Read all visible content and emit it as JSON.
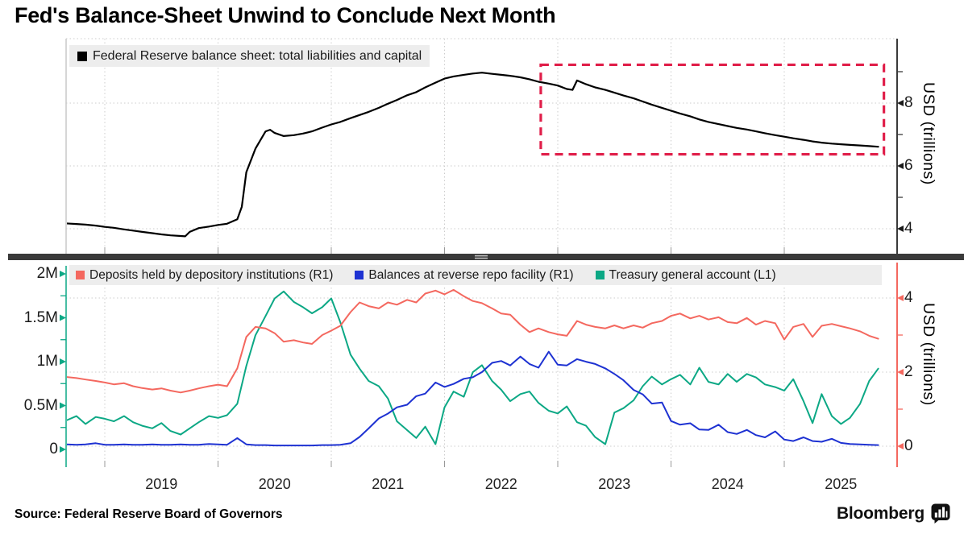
{
  "title": "Fed's Balance-Sheet Unwind to Conclude Next Month",
  "source": "Source: Federal Reserve Board of Governors",
  "brand": {
    "wordmark": "Bloomberg",
    "icon": "bloomberg-terminal-icon"
  },
  "colors": {
    "black_series": "#000000",
    "deposits_red": "#f4685f",
    "repo_blue": "#1e32d2",
    "tga_green": "#0ca885",
    "annotation_red": "#e01e49",
    "divider": "#3a3a3a",
    "gridline": "#cccccc",
    "legend_bg": "#ededed"
  },
  "top_panel": {
    "legend": {
      "marker_color": "#000000",
      "label": "Federal Reserve balance sheet: total liabilities and capital"
    },
    "right_axis": {
      "label": "USD (trillions)",
      "ticks": [
        "4",
        "6",
        "8"
      ],
      "tick_values": [
        4,
        6,
        8
      ],
      "minor_tick_values": [
        5,
        7,
        9
      ],
      "color": "#3a3a3a"
    }
  },
  "bottom_panel": {
    "legend_items": [
      {
        "label": "Deposits held by depository institutions (R1)",
        "color": "#f4685f"
      },
      {
        "label": "Balances at reverse repo facility (R1)",
        "color": "#1e32d2"
      },
      {
        "label": "Treasury general account (L1)",
        "color": "#0ca885"
      }
    ],
    "left_axis": {
      "ticks": [
        "0",
        "0.5M",
        "1M",
        "1.5M",
        "2M"
      ],
      "tick_values": [
        0,
        0.5,
        1,
        1.5,
        2
      ],
      "minor_tick_values": [
        0.25,
        0.75,
        1.25,
        1.75
      ],
      "color": "#0ca885"
    },
    "right_axis": {
      "label": "USD (trillions)",
      "ticks": [
        "0",
        "2",
        "4"
      ],
      "tick_values": [
        0,
        2,
        4
      ],
      "minor_tick_values": [
        1,
        3
      ],
      "color": "#f4685f"
    }
  },
  "x_axis": {
    "year_labels": [
      "2019",
      "2020",
      "2021",
      "2022",
      "2023",
      "2024",
      "2025"
    ],
    "year_values": [
      2019,
      2020,
      2021,
      2022,
      2023,
      2024,
      2025
    ]
  },
  "annotation": {
    "shape": "dashed-rectangle",
    "color": "#e01e49",
    "x_years": [
      2022.85,
      2025.88
    ],
    "y_trillions": [
      6.37,
      9.22
    ]
  },
  "chart_data": [
    {
      "type": "line",
      "panel": "top",
      "title": "Federal Reserve balance sheet: total liabilities and capital",
      "ylabel": "USD (trillions)",
      "y_axis_side": "right",
      "ylim": [
        3.15,
        10.05
      ],
      "x_domain_years": [
        2018.66,
        2026.0
      ],
      "grid": true,
      "series": [
        {
          "name": "Federal Reserve balance sheet: total liabilities and capital",
          "color": "#000000",
          "units": "USD trillions",
          "x": [
            2018.66,
            2018.75,
            2018.83,
            2018.92,
            2019,
            2019.08,
            2019.17,
            2019.25,
            2019.33,
            2019.42,
            2019.5,
            2019.58,
            2019.67,
            2019.71,
            2019.75,
            2019.83,
            2019.92,
            2020,
            2020.08,
            2020.17,
            2020.21,
            2020.25,
            2020.33,
            2020.42,
            2020.46,
            2020.5,
            2020.58,
            2020.67,
            2020.75,
            2020.83,
            2020.92,
            2021,
            2021.08,
            2021.17,
            2021.25,
            2021.33,
            2021.42,
            2021.5,
            2021.58,
            2021.67,
            2021.75,
            2021.83,
            2021.92,
            2022,
            2022.08,
            2022.17,
            2022.25,
            2022.33,
            2022.42,
            2022.5,
            2022.58,
            2022.67,
            2022.75,
            2022.83,
            2022.92,
            2023,
            2023.08,
            2023.13,
            2023.17,
            2023.25,
            2023.33,
            2023.42,
            2023.5,
            2023.58,
            2023.67,
            2023.75,
            2023.83,
            2023.92,
            2024,
            2024.08,
            2024.17,
            2024.25,
            2024.33,
            2024.42,
            2024.5,
            2024.58,
            2024.67,
            2024.75,
            2024.83,
            2024.92,
            2025,
            2025.08,
            2025.17,
            2025.25,
            2025.33,
            2025.42,
            2025.5,
            2025.58,
            2025.67,
            2025.75,
            2025.83
          ],
          "y": [
            4.17,
            4.15,
            4.13,
            4.1,
            4.06,
            4.03,
            3.98,
            3.94,
            3.9,
            3.86,
            3.82,
            3.79,
            3.77,
            3.76,
            3.9,
            4.02,
            4.07,
            4.12,
            4.16,
            4.3,
            4.7,
            5.8,
            6.55,
            7.1,
            7.15,
            7.05,
            6.95,
            6.98,
            7.03,
            7.1,
            7.22,
            7.32,
            7.4,
            7.52,
            7.62,
            7.72,
            7.85,
            7.98,
            8.1,
            8.25,
            8.35,
            8.5,
            8.65,
            8.78,
            8.85,
            8.9,
            8.94,
            8.97,
            8.93,
            8.9,
            8.87,
            8.82,
            8.76,
            8.68,
            8.62,
            8.56,
            8.45,
            8.42,
            8.72,
            8.6,
            8.5,
            8.42,
            8.33,
            8.24,
            8.15,
            8.05,
            7.95,
            7.85,
            7.76,
            7.67,
            7.58,
            7.48,
            7.4,
            7.33,
            7.27,
            7.21,
            7.16,
            7.1,
            7.04,
            6.98,
            6.93,
            6.88,
            6.83,
            6.78,
            6.74,
            6.71,
            6.69,
            6.67,
            6.65,
            6.63,
            6.61
          ]
        }
      ]
    },
    {
      "type": "line",
      "panel": "bottom",
      "left_ylabel_units": "millions (M)",
      "right_ylabel": "USD (trillions)",
      "left_ylim_millions": [
        -0.2,
        2.09
      ],
      "right_ylim_trillions": [
        -0.57,
        4.87
      ],
      "x_domain_years": [
        2018.66,
        2026.0
      ],
      "grid": true,
      "x_values_years": [
        2018.66,
        2018.75,
        2018.83,
        2018.92,
        2019,
        2019.08,
        2019.17,
        2019.25,
        2019.33,
        2019.42,
        2019.5,
        2019.58,
        2019.67,
        2019.75,
        2019.83,
        2019.92,
        2020,
        2020.08,
        2020.17,
        2020.25,
        2020.33,
        2020.42,
        2020.5,
        2020.58,
        2020.67,
        2020.75,
        2020.83,
        2020.92,
        2021,
        2021.08,
        2021.17,
        2021.25,
        2021.33,
        2021.42,
        2021.5,
        2021.58,
        2021.67,
        2021.75,
        2021.83,
        2021.92,
        2022,
        2022.08,
        2022.17,
        2022.25,
        2022.33,
        2022.42,
        2022.5,
        2022.58,
        2022.67,
        2022.75,
        2022.83,
        2022.92,
        2023,
        2023.08,
        2023.17,
        2023.25,
        2023.33,
        2023.42,
        2023.5,
        2023.58,
        2023.67,
        2023.75,
        2023.83,
        2023.92,
        2024,
        2024.08,
        2024.17,
        2024.25,
        2024.33,
        2024.42,
        2024.5,
        2024.58,
        2024.67,
        2024.75,
        2024.83,
        2024.92,
        2025,
        2025.08,
        2025.17,
        2025.25,
        2025.33,
        2025.42,
        2025.5,
        2025.58,
        2025.67,
        2025.75,
        2025.83
      ],
      "series": [
        {
          "name": "Deposits held by depository institutions",
          "axis": "R1",
          "color": "#f4685f",
          "units": "USD trillions",
          "y": [
            1.87,
            1.84,
            1.8,
            1.76,
            1.72,
            1.67,
            1.7,
            1.62,
            1.57,
            1.53,
            1.56,
            1.5,
            1.45,
            1.5,
            1.56,
            1.62,
            1.66,
            1.62,
            2.1,
            2.95,
            3.22,
            3.18,
            3.05,
            2.82,
            2.86,
            2.8,
            2.76,
            3.0,
            3.12,
            3.25,
            3.62,
            3.88,
            3.78,
            3.72,
            3.88,
            3.82,
            3.95,
            3.88,
            4.12,
            4.2,
            4.1,
            4.22,
            4.05,
            3.92,
            3.86,
            3.72,
            3.58,
            3.55,
            3.28,
            3.08,
            3.18,
            3.08,
            3.02,
            2.98,
            3.38,
            3.28,
            3.22,
            3.18,
            3.26,
            3.18,
            3.26,
            3.2,
            3.32,
            3.38,
            3.52,
            3.58,
            3.45,
            3.52,
            3.42,
            3.48,
            3.35,
            3.32,
            3.46,
            3.28,
            3.38,
            3.32,
            2.88,
            3.22,
            3.3,
            2.95,
            3.25,
            3.3,
            3.24,
            3.18,
            3.1,
            2.98,
            2.9
          ]
        },
        {
          "name": "Balances at reverse repo facility",
          "axis": "R1",
          "color": "#1e32d2",
          "units": "USD trillions",
          "y": [
            0.05,
            0.04,
            0.05,
            0.08,
            0.04,
            0.04,
            0.05,
            0.04,
            0.04,
            0.05,
            0.04,
            0.04,
            0.05,
            0.04,
            0.04,
            0.06,
            0.05,
            0.04,
            0.22,
            0.05,
            0.03,
            0.03,
            0.02,
            0.02,
            0.02,
            0.02,
            0.02,
            0.03,
            0.03,
            0.04,
            0.08,
            0.25,
            0.48,
            0.75,
            0.88,
            1.05,
            1.12,
            1.35,
            1.42,
            1.72,
            1.6,
            1.68,
            1.82,
            1.86,
            2.0,
            2.25,
            2.3,
            2.18,
            2.42,
            2.22,
            2.12,
            2.55,
            2.2,
            2.18,
            2.35,
            2.28,
            2.22,
            2.1,
            1.95,
            1.78,
            1.52,
            1.4,
            1.15,
            1.18,
            0.68,
            0.58,
            0.62,
            0.45,
            0.44,
            0.58,
            0.38,
            0.33,
            0.44,
            0.3,
            0.24,
            0.4,
            0.18,
            0.14,
            0.24,
            0.14,
            0.12,
            0.2,
            0.09,
            0.06,
            0.05,
            0.04,
            0.03
          ]
        },
        {
          "name": "Treasury general account",
          "axis": "L1",
          "color": "#0ca885",
          "units": "millions (1M = 1 trillion USD)",
          "y": [
            0.33,
            0.38,
            0.29,
            0.37,
            0.35,
            0.32,
            0.38,
            0.31,
            0.27,
            0.24,
            0.3,
            0.21,
            0.17,
            0.24,
            0.31,
            0.38,
            0.36,
            0.39,
            0.52,
            0.95,
            1.3,
            1.52,
            1.72,
            1.8,
            1.68,
            1.62,
            1.55,
            1.62,
            1.72,
            1.45,
            1.08,
            0.92,
            0.78,
            0.72,
            0.58,
            0.32,
            0.22,
            0.13,
            0.26,
            0.06,
            0.48,
            0.66,
            0.6,
            0.88,
            0.96,
            0.78,
            0.68,
            0.55,
            0.63,
            0.66,
            0.53,
            0.44,
            0.41,
            0.49,
            0.31,
            0.27,
            0.14,
            0.06,
            0.42,
            0.47,
            0.56,
            0.72,
            0.83,
            0.74,
            0.8,
            0.85,
            0.74,
            0.93,
            0.77,
            0.74,
            0.86,
            0.77,
            0.86,
            0.82,
            0.74,
            0.71,
            0.67,
            0.8,
            0.55,
            0.3,
            0.63,
            0.38,
            0.29,
            0.36,
            0.52,
            0.78,
            0.92
          ]
        }
      ]
    }
  ]
}
